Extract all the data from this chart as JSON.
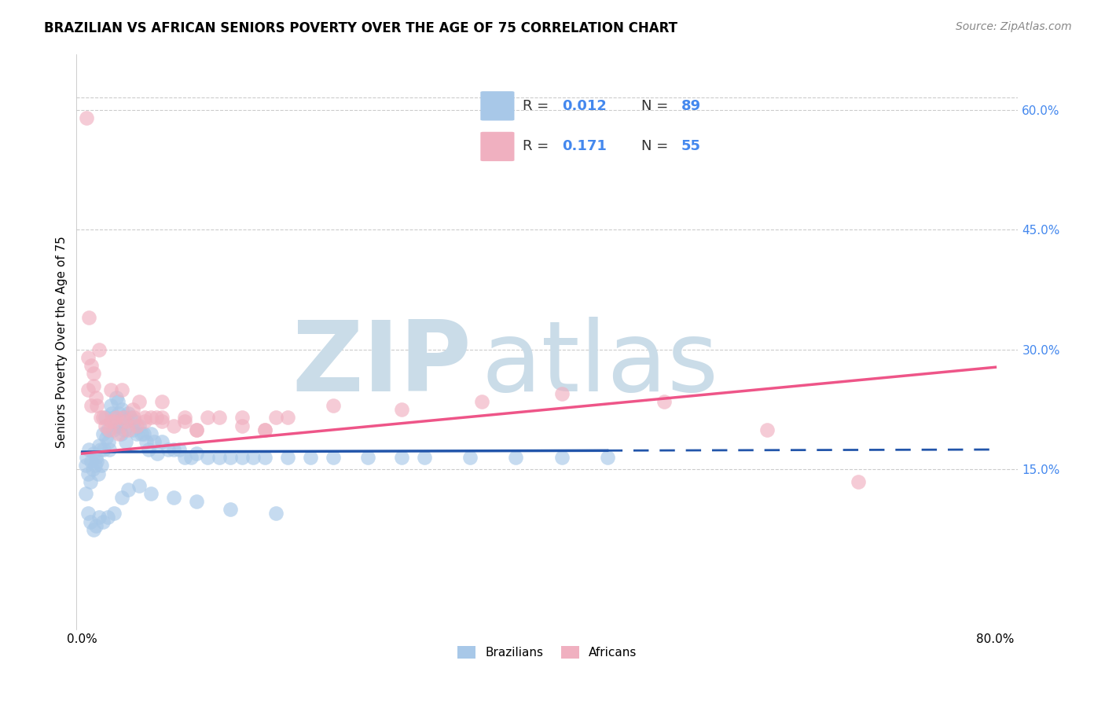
{
  "title": "BRAZILIAN VS AFRICAN SENIORS POVERTY OVER THE AGE OF 75 CORRELATION CHART",
  "source": "Source: ZipAtlas.com",
  "ylabel": "Seniors Poverty Over the Age of 75",
  "ytick_vals": [
    0.15,
    0.3,
    0.45,
    0.6
  ],
  "ytick_labels": [
    "15.0%",
    "30.0%",
    "45.0%",
    "60.0%"
  ],
  "xlim": [
    -0.005,
    0.82
  ],
  "ylim": [
    -0.05,
    0.67
  ],
  "watermark_zip": "ZIP",
  "watermark_atlas": "atlas",
  "legend_blue_r": "0.012",
  "legend_blue_n": "89",
  "legend_pink_r": "0.171",
  "legend_pink_n": "55",
  "legend_label1": "Brazilians",
  "legend_label2": "Africans",
  "blue_scatter_color": "#A8C8E8",
  "pink_scatter_color": "#F0B0C0",
  "blue_line_color": "#2255AA",
  "pink_line_color": "#EE5588",
  "title_fontsize": 12,
  "source_fontsize": 10,
  "axis_label_fontsize": 11,
  "watermark_color": "#CADCE8",
  "grid_color": "#CCCCCC",
  "right_tick_color": "#4488EE",
  "blue_trend_start_x": 0.0,
  "blue_trend_end_x": 0.8,
  "blue_trend_solid_end": 0.46,
  "pink_trend_start_x": 0.0,
  "pink_trend_end_x": 0.8,
  "blue_trend_start_y": 0.172,
  "blue_trend_end_y": 0.175,
  "pink_trend_start_y": 0.17,
  "pink_trend_end_y": 0.278,
  "brazilian_x": [
    0.003,
    0.004,
    0.005,
    0.006,
    0.007,
    0.008,
    0.009,
    0.01,
    0.011,
    0.012,
    0.013,
    0.014,
    0.015,
    0.016,
    0.017,
    0.018,
    0.019,
    0.02,
    0.021,
    0.022,
    0.023,
    0.024,
    0.025,
    0.026,
    0.027,
    0.028,
    0.029,
    0.03,
    0.031,
    0.032,
    0.033,
    0.034,
    0.035,
    0.036,
    0.037,
    0.038,
    0.04,
    0.042,
    0.044,
    0.046,
    0.048,
    0.05,
    0.052,
    0.054,
    0.056,
    0.058,
    0.06,
    0.063,
    0.066,
    0.07,
    0.075,
    0.08,
    0.085,
    0.09,
    0.095,
    0.1,
    0.11,
    0.12,
    0.13,
    0.14,
    0.15,
    0.16,
    0.18,
    0.2,
    0.22,
    0.25,
    0.28,
    0.3,
    0.34,
    0.38,
    0.42,
    0.46,
    0.003,
    0.005,
    0.007,
    0.01,
    0.012,
    0.015,
    0.018,
    0.022,
    0.028,
    0.035,
    0.04,
    0.05,
    0.06,
    0.08,
    0.1,
    0.13,
    0.17
  ],
  "brazilian_y": [
    0.155,
    0.165,
    0.145,
    0.175,
    0.135,
    0.16,
    0.15,
    0.17,
    0.155,
    0.165,
    0.16,
    0.145,
    0.18,
    0.175,
    0.155,
    0.195,
    0.175,
    0.215,
    0.19,
    0.2,
    0.185,
    0.175,
    0.23,
    0.22,
    0.2,
    0.215,
    0.205,
    0.24,
    0.235,
    0.22,
    0.205,
    0.195,
    0.225,
    0.215,
    0.2,
    0.185,
    0.22,
    0.215,
    0.2,
    0.21,
    0.195,
    0.205,
    0.195,
    0.195,
    0.185,
    0.175,
    0.195,
    0.185,
    0.17,
    0.185,
    0.175,
    0.175,
    0.175,
    0.165,
    0.165,
    0.17,
    0.165,
    0.165,
    0.165,
    0.165,
    0.165,
    0.165,
    0.165,
    0.165,
    0.165,
    0.165,
    0.165,
    0.165,
    0.165,
    0.165,
    0.165,
    0.165,
    0.12,
    0.095,
    0.085,
    0.075,
    0.08,
    0.09,
    0.085,
    0.09,
    0.095,
    0.115,
    0.125,
    0.13,
    0.12,
    0.115,
    0.11,
    0.1,
    0.095
  ],
  "african_x": [
    0.004,
    0.006,
    0.008,
    0.01,
    0.013,
    0.016,
    0.02,
    0.024,
    0.028,
    0.032,
    0.036,
    0.04,
    0.044,
    0.048,
    0.055,
    0.06,
    0.065,
    0.07,
    0.08,
    0.09,
    0.1,
    0.12,
    0.14,
    0.16,
    0.18,
    0.005,
    0.008,
    0.012,
    0.018,
    0.025,
    0.03,
    0.038,
    0.045,
    0.055,
    0.07,
    0.09,
    0.11,
    0.14,
    0.17,
    0.22,
    0.28,
    0.35,
    0.42,
    0.51,
    0.6,
    0.68,
    0.005,
    0.01,
    0.015,
    0.025,
    0.035,
    0.05,
    0.07,
    0.1,
    0.16
  ],
  "african_y": [
    0.59,
    0.34,
    0.28,
    0.255,
    0.23,
    0.215,
    0.205,
    0.2,
    0.21,
    0.195,
    0.215,
    0.2,
    0.225,
    0.205,
    0.215,
    0.215,
    0.215,
    0.21,
    0.205,
    0.215,
    0.2,
    0.215,
    0.205,
    0.2,
    0.215,
    0.25,
    0.23,
    0.24,
    0.215,
    0.21,
    0.215,
    0.21,
    0.215,
    0.21,
    0.215,
    0.21,
    0.215,
    0.215,
    0.215,
    0.23,
    0.225,
    0.235,
    0.245,
    0.235,
    0.2,
    0.135,
    0.29,
    0.27,
    0.3,
    0.25,
    0.25,
    0.235,
    0.235,
    0.2,
    0.2
  ]
}
